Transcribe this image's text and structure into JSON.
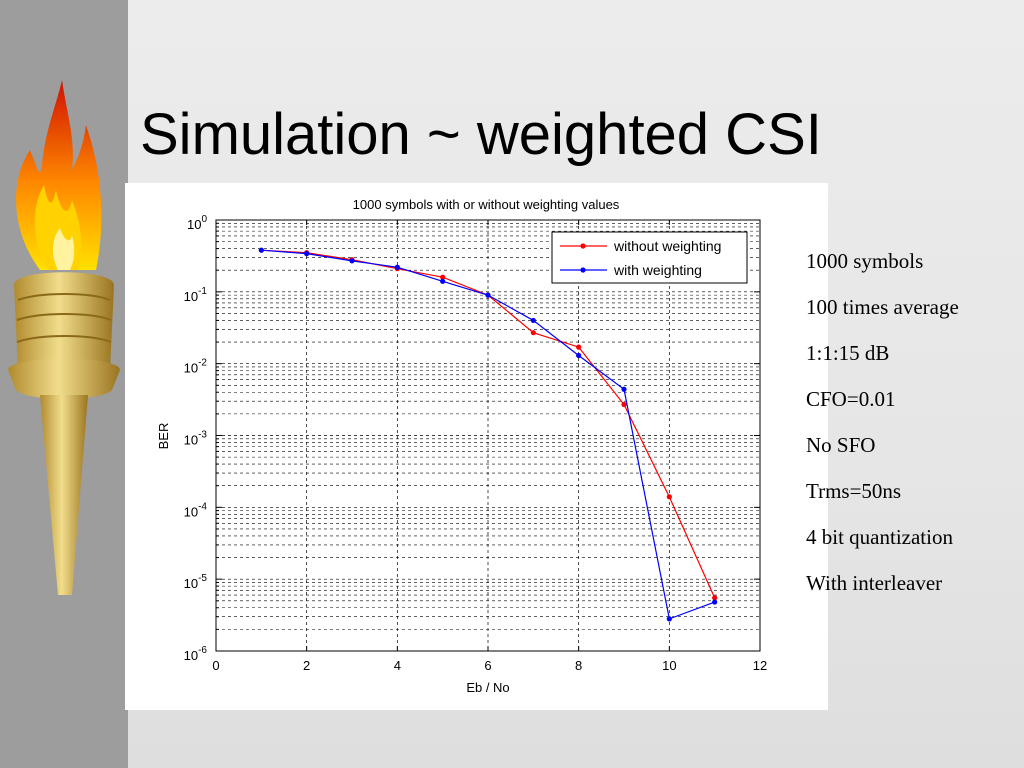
{
  "slide": {
    "title": "Simulation ~ weighted CSI",
    "notes": [
      "1000 symbols",
      "100 times average",
      "1:1:15 dB",
      "CFO=0.01",
      "No SFO",
      "Trms=50ns",
      "4 bit quantization",
      "With interleaver"
    ]
  },
  "chart_data": {
    "type": "line",
    "title": "1000 symbols with or without weighting values",
    "xlabel": "Eb / No",
    "ylabel": "BER",
    "xlim": [
      0,
      12
    ],
    "ylim": [
      1e-06,
      1
    ],
    "yscale": "log",
    "x_ticks": [
      0,
      2,
      4,
      6,
      8,
      10,
      12
    ],
    "y_tick_exponents": [
      0,
      -1,
      -2,
      -3,
      -4,
      -5,
      -6
    ],
    "grid": true,
    "legend_position": "top-right",
    "series": [
      {
        "name": "without weighting",
        "color": "#ff0000",
        "x": [
          1,
          2,
          3,
          4,
          5,
          6,
          7,
          8,
          9,
          10,
          11
        ],
        "y": [
          0.38,
          0.35,
          0.28,
          0.21,
          0.16,
          0.09,
          0.027,
          0.017,
          0.0027,
          0.00014,
          5.5e-06
        ]
      },
      {
        "name": "with weighting",
        "color": "#0000ff",
        "x": [
          1,
          2,
          3,
          4,
          5,
          6,
          7,
          8,
          9,
          10,
          11
        ],
        "y": [
          0.38,
          0.34,
          0.27,
          0.22,
          0.14,
          0.09,
          0.04,
          0.013,
          0.0044,
          2.8e-06,
          4.8e-06
        ]
      }
    ]
  }
}
